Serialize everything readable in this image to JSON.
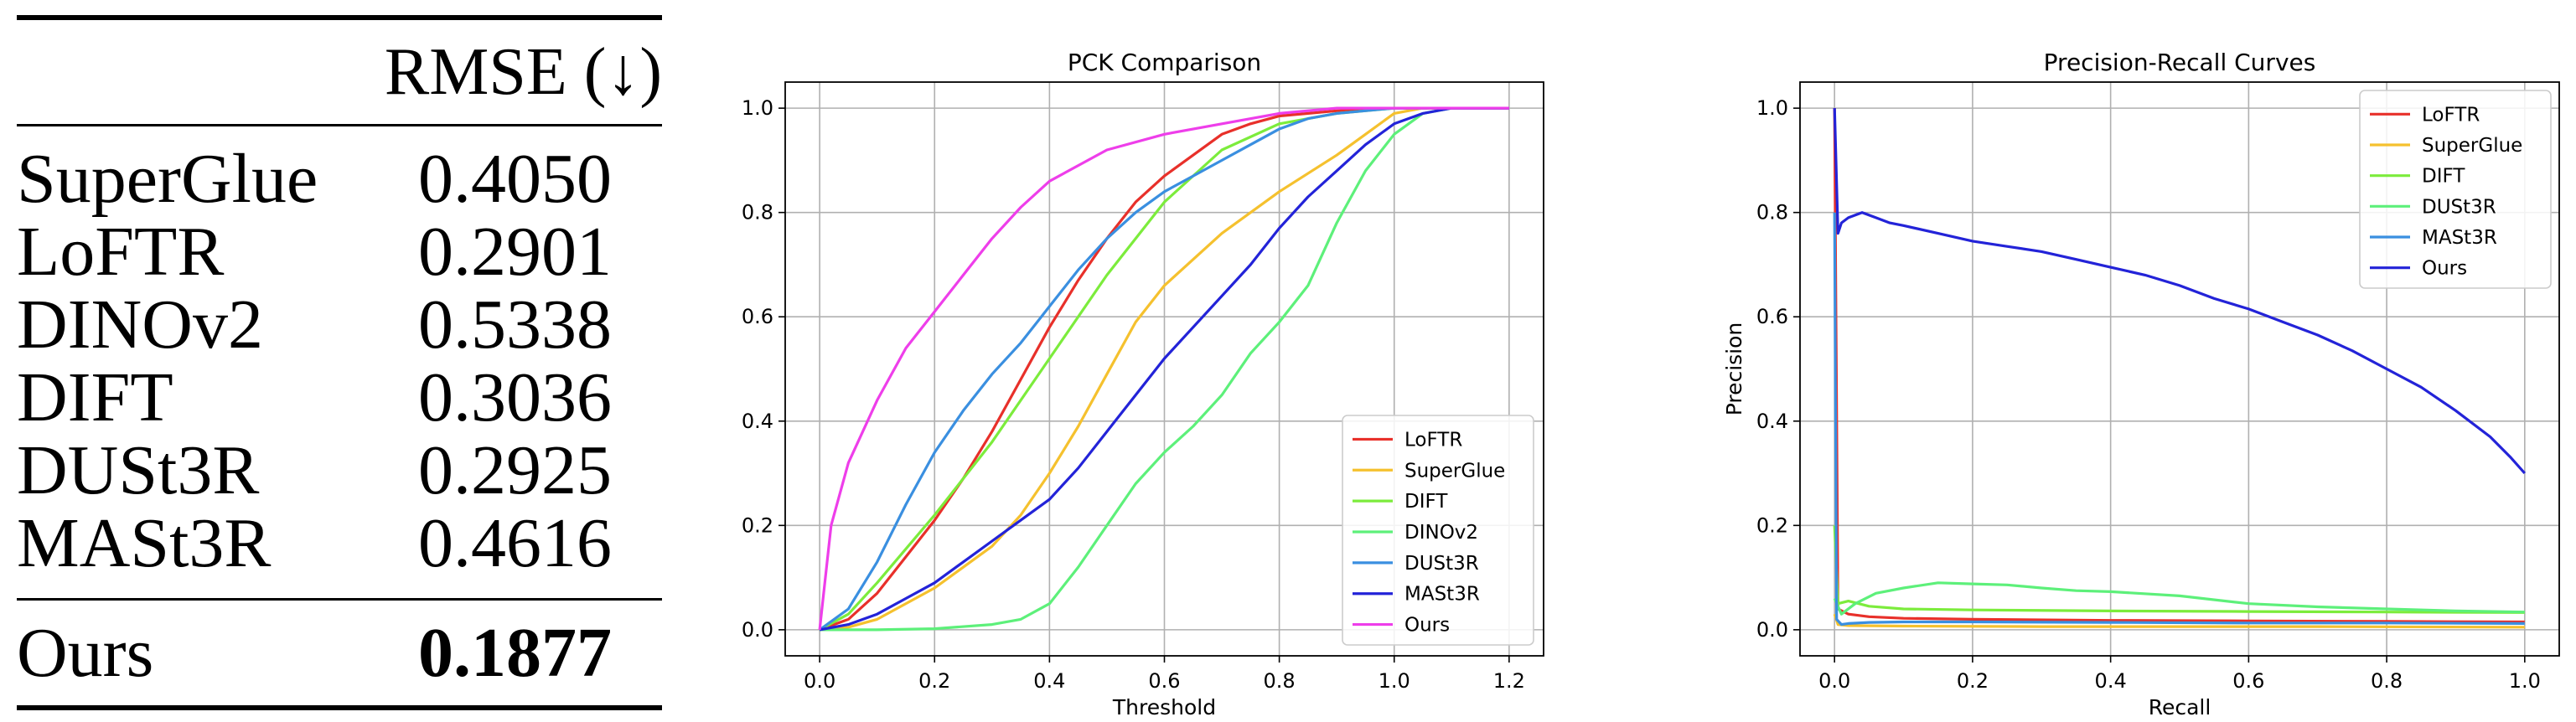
{
  "table": {
    "header": "RMSE (↓)",
    "rows": [
      {
        "method": "SuperGlue",
        "rmse": "0.4050"
      },
      {
        "method": "LoFTR",
        "rmse": "0.2901"
      },
      {
        "method": "DINOv2",
        "rmse": "0.5338"
      },
      {
        "method": "DIFT",
        "rmse": "0.3036"
      },
      {
        "method": "DUSt3R",
        "rmse": "0.2925"
      },
      {
        "method": "MASt3R",
        "rmse": "0.4616"
      }
    ],
    "best": {
      "method": "Ours",
      "rmse": "0.1877"
    }
  },
  "chart_data": [
    {
      "type": "line",
      "title": "PCK Comparison",
      "xlabel": "Threshold",
      "ylabel": "",
      "xlim": [
        -0.06,
        1.26
      ],
      "ylim": [
        -0.05,
        1.05
      ],
      "xticks": [
        "0.0",
        "0.2",
        "0.4",
        "0.6",
        "0.8",
        "1.0",
        "1.2"
      ],
      "yticks": [
        "0.0",
        "0.2",
        "0.4",
        "0.6",
        "0.8",
        "1.0"
      ],
      "grid": true,
      "legend": "lower right",
      "series": [
        {
          "name": "LoFTR",
          "color": "#e8302a",
          "x": [
            0,
            0.05,
            0.1,
            0.15,
            0.2,
            0.25,
            0.3,
            0.35,
            0.4,
            0.45,
            0.5,
            0.55,
            0.6,
            0.65,
            0.7,
            0.75,
            0.8,
            0.85,
            0.9,
            1.0,
            1.1,
            1.2
          ],
          "y": [
            0,
            0.02,
            0.07,
            0.14,
            0.21,
            0.29,
            0.38,
            0.48,
            0.58,
            0.67,
            0.75,
            0.82,
            0.87,
            0.91,
            0.95,
            0.97,
            0.985,
            0.99,
            0.995,
            1.0,
            1.0,
            1.0
          ]
        },
        {
          "name": "SuperGlue",
          "color": "#f5c12e",
          "x": [
            0,
            0.05,
            0.1,
            0.2,
            0.3,
            0.35,
            0.4,
            0.45,
            0.5,
            0.55,
            0.6,
            0.7,
            0.8,
            0.9,
            0.95,
            1.0,
            1.05,
            1.1,
            1.2
          ],
          "y": [
            0,
            0.005,
            0.02,
            0.08,
            0.16,
            0.22,
            0.3,
            0.39,
            0.49,
            0.59,
            0.66,
            0.76,
            0.84,
            0.91,
            0.95,
            0.99,
            1.0,
            1.0,
            1.0
          ]
        },
        {
          "name": "DIFT",
          "color": "#7cec3c",
          "x": [
            0,
            0.05,
            0.1,
            0.2,
            0.3,
            0.4,
            0.5,
            0.6,
            0.7,
            0.8,
            0.9,
            1.0,
            1.2
          ],
          "y": [
            0,
            0.03,
            0.09,
            0.22,
            0.36,
            0.52,
            0.68,
            0.82,
            0.92,
            0.97,
            0.99,
            1.0,
            1.0
          ]
        },
        {
          "name": "DINOv2",
          "color": "#5df07a",
          "x": [
            0,
            0.1,
            0.2,
            0.3,
            0.35,
            0.4,
            0.45,
            0.5,
            0.55,
            0.6,
            0.65,
            0.7,
            0.75,
            0.8,
            0.85,
            0.9,
            0.95,
            1.0,
            1.05,
            1.1,
            1.2
          ],
          "y": [
            0,
            0,
            0.002,
            0.01,
            0.02,
            0.05,
            0.12,
            0.2,
            0.28,
            0.34,
            0.39,
            0.45,
            0.53,
            0.59,
            0.66,
            0.78,
            0.88,
            0.95,
            0.99,
            1.0,
            1.0
          ]
        },
        {
          "name": "DUSt3R",
          "color": "#3a8fe0",
          "x": [
            0,
            0.05,
            0.1,
            0.15,
            0.2,
            0.25,
            0.3,
            0.35,
            0.4,
            0.45,
            0.5,
            0.55,
            0.6,
            0.65,
            0.7,
            0.75,
            0.8,
            0.85,
            0.9,
            1.0,
            1.1,
            1.2
          ],
          "y": [
            0,
            0.04,
            0.13,
            0.24,
            0.34,
            0.42,
            0.49,
            0.55,
            0.62,
            0.69,
            0.75,
            0.8,
            0.84,
            0.87,
            0.9,
            0.93,
            0.96,
            0.98,
            0.99,
            1.0,
            1.0,
            1.0
          ]
        },
        {
          "name": "MASt3R",
          "color": "#2323d8",
          "x": [
            0,
            0.05,
            0.1,
            0.15,
            0.2,
            0.25,
            0.3,
            0.35,
            0.4,
            0.45,
            0.5,
            0.55,
            0.6,
            0.65,
            0.7,
            0.75,
            0.8,
            0.85,
            0.9,
            0.95,
            1.0,
            1.05,
            1.1,
            1.15,
            1.2
          ],
          "y": [
            0,
            0.01,
            0.03,
            0.06,
            0.09,
            0.13,
            0.17,
            0.21,
            0.25,
            0.31,
            0.38,
            0.45,
            0.52,
            0.58,
            0.64,
            0.7,
            0.77,
            0.83,
            0.88,
            0.93,
            0.97,
            0.99,
            1.0,
            1.0,
            1.0
          ]
        },
        {
          "name": "Ours",
          "color": "#ee3eea",
          "x": [
            0,
            0.02,
            0.05,
            0.1,
            0.15,
            0.2,
            0.25,
            0.3,
            0.35,
            0.4,
            0.5,
            0.6,
            0.7,
            0.8,
            0.9,
            1.0,
            1.1,
            1.2
          ],
          "y": [
            0,
            0.2,
            0.32,
            0.44,
            0.54,
            0.61,
            0.68,
            0.75,
            0.81,
            0.86,
            0.92,
            0.95,
            0.97,
            0.99,
            1.0,
            1.0,
            1.0,
            1.0
          ]
        }
      ]
    },
    {
      "type": "line",
      "title": "Precision-Recall Curves",
      "xlabel": "Recall",
      "ylabel": "Precision",
      "xlim": [
        -0.05,
        1.05
      ],
      "ylim": [
        -0.05,
        1.05
      ],
      "xticks": [
        "0.0",
        "0.2",
        "0.4",
        "0.6",
        "0.8",
        "1.0"
      ],
      "yticks": [
        "0.0",
        "0.2",
        "0.4",
        "0.6",
        "0.8",
        "1.0"
      ],
      "grid": true,
      "legend": "upper right",
      "series": [
        {
          "name": "LoFTR",
          "color": "#e8302a",
          "x": [
            0,
            0.005,
            0.02,
            0.05,
            0.1,
            0.2,
            0.4,
            0.6,
            0.8,
            1.0
          ],
          "y": [
            1.0,
            0.04,
            0.03,
            0.025,
            0.022,
            0.02,
            0.018,
            0.017,
            0.016,
            0.015
          ]
        },
        {
          "name": "SuperGlue",
          "color": "#f5c12e",
          "x": [
            0,
            0.005,
            0.02,
            0.1,
            0.3,
            0.5,
            0.7,
            1.0
          ],
          "y": [
            0.03,
            0.01,
            0.008,
            0.007,
            0.006,
            0.006,
            0.006,
            0.005
          ]
        },
        {
          "name": "DIFT",
          "color": "#7cec3c",
          "x": [
            0,
            0.005,
            0.02,
            0.05,
            0.1,
            0.2,
            0.4,
            0.6,
            0.8,
            1.0
          ],
          "y": [
            0.2,
            0.05,
            0.055,
            0.045,
            0.04,
            0.038,
            0.036,
            0.035,
            0.034,
            0.033
          ]
        },
        {
          "name": "DUSt3R",
          "color": "#5df07a",
          "x": [
            0,
            0.01,
            0.03,
            0.06,
            0.1,
            0.15,
            0.2,
            0.25,
            0.3,
            0.35,
            0.4,
            0.5,
            0.6,
            0.7,
            0.8,
            0.9,
            1.0
          ],
          "y": [
            0.06,
            0.03,
            0.05,
            0.07,
            0.08,
            0.09,
            0.088,
            0.086,
            0.08,
            0.075,
            0.073,
            0.065,
            0.05,
            0.044,
            0.04,
            0.036,
            0.034
          ]
        },
        {
          "name": "MASt3R",
          "color": "#3a8fe0",
          "x": [
            0,
            0.003,
            0.01,
            0.02,
            0.05,
            0.1,
            0.2,
            0.4,
            0.6,
            0.8,
            1.0
          ],
          "y": [
            0.8,
            0.02,
            0.01,
            0.012,
            0.014,
            0.015,
            0.015,
            0.014,
            0.013,
            0.013,
            0.012
          ]
        },
        {
          "name": "Ours",
          "color": "#2323d8",
          "x": [
            0,
            0.005,
            0.01,
            0.02,
            0.04,
            0.06,
            0.08,
            0.1,
            0.15,
            0.2,
            0.25,
            0.3,
            0.35,
            0.4,
            0.45,
            0.5,
            0.55,
            0.6,
            0.65,
            0.7,
            0.75,
            0.8,
            0.85,
            0.9,
            0.95,
            0.98,
            1.0
          ],
          "y": [
            1.0,
            0.76,
            0.78,
            0.79,
            0.8,
            0.79,
            0.78,
            0.775,
            0.76,
            0.745,
            0.735,
            0.725,
            0.71,
            0.695,
            0.68,
            0.66,
            0.635,
            0.615,
            0.59,
            0.565,
            0.535,
            0.5,
            0.465,
            0.42,
            0.37,
            0.33,
            0.3
          ]
        }
      ]
    }
  ]
}
